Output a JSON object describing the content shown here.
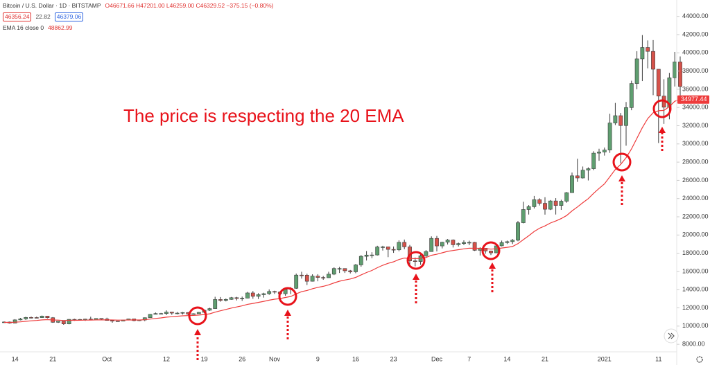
{
  "chart_data": {
    "type": "candlestick",
    "symbol": "Bitcoin / U.S. Dollar · 1D · BITSTAMP",
    "ohlc_text": "O46671.66 H47201.00 L46259.00 C46329.52 −375.15 (−0.80%)",
    "bid": 46356.24,
    "spread": 22.82,
    "ask": 46379.06,
    "annotation": "The price is respecting the 20 EMA",
    "up_color": "#5f9e70",
    "down_color": "#d6524a",
    "categories": [
      null,
      null,
      "14",
      null,
      null,
      null,
      null,
      null,
      null,
      "21",
      null,
      null,
      null,
      null,
      null,
      null,
      null,
      null,
      null,
      "Oct",
      null,
      null,
      null,
      null,
      null,
      null,
      null,
      null,
      null,
      null,
      "12",
      null,
      null,
      null,
      null,
      null,
      null,
      "19",
      null,
      null,
      null,
      null,
      null,
      null,
      "26",
      null,
      null,
      null,
      null,
      null,
      "Nov",
      null,
      null,
      null,
      null,
      null,
      null,
      null,
      "9",
      null,
      null,
      null,
      null,
      null,
      null,
      "16",
      null,
      null,
      null,
      null,
      null,
      null,
      "23",
      null,
      null,
      null,
      null,
      null,
      null,
      null,
      "Dec",
      null,
      null,
      null,
      null,
      null,
      "7",
      null,
      null,
      null,
      null,
      null,
      null,
      "14",
      null,
      null,
      null,
      null,
      null,
      null,
      "21",
      null,
      null,
      null,
      null,
      null,
      null,
      null,
      null,
      null,
      null,
      "2021",
      null,
      null,
      null,
      null,
      null,
      null,
      null,
      null,
      null,
      "11",
      null,
      null,
      null,
      null
    ],
    "open": [
      10400,
      10450,
      10330,
      10680,
      10790,
      10950,
      10940,
      10930,
      11100,
      10920,
      10420,
      10540,
      10240,
      10740,
      10690,
      10730,
      10770,
      10690,
      10840,
      10780,
      10620,
      10570,
      10550,
      10670,
      10790,
      10600,
      10670,
      10920,
      11290,
      11380,
      11380,
      11540,
      11430,
      11430,
      11490,
      11320,
      11360,
      11510,
      11740,
      11920,
      12920,
      12820,
      12930,
      13120,
      13030,
      13070,
      13640,
      13270,
      13450,
      13560,
      13800,
      13740,
      13550,
      14030,
      14150,
      15600,
      15590,
      14920,
      15490,
      15340,
      15310,
      15700,
      16320,
      16320,
      16070,
      15960,
      16720,
      17660,
      17800,
      17810,
      18690,
      18700,
      18420,
      18370,
      19200,
      18700,
      17160,
      17090,
      17720,
      18180,
      19630,
      18800,
      19210,
      19450,
      18930,
      19060,
      19180,
      19190,
      18320,
      18550,
      18250,
      18040,
      18810,
      19170,
      19270,
      19430,
      21350,
      22800,
      23110,
      23880,
      23480,
      22830,
      23740,
      23240,
      23710,
      24650,
      26500,
      26260,
      27120,
      27280,
      28990,
      29110,
      29330,
      32300,
      33100,
      32020,
      33990,
      36630,
      39340,
      40590,
      40160,
      38200,
      35250,
      34030,
      37260,
      39000
    ],
    "high": [
      10520,
      10500,
      10760,
      10900,
      11030,
      11050,
      11040,
      11160,
      11110,
      10990,
      10570,
      10550,
      10770,
      10800,
      10800,
      10800,
      11030,
      10860,
      10850,
      10920,
      10630,
      10590,
      10680,
      10800,
      10800,
      10690,
      10950,
      11330,
      11490,
      11450,
      11730,
      11550,
      11550,
      11550,
      11540,
      11400,
      11550,
      11820,
      12010,
      13220,
      13190,
      13030,
      13200,
      13210,
      13240,
      13760,
      13850,
      13620,
      13660,
      14030,
      13880,
      13820,
      14070,
      14280,
      15770,
      15970,
      15750,
      15690,
      15700,
      15500,
      15970,
      16450,
      16500,
      16330,
      16160,
      16820,
      17800,
      18240,
      18110,
      18820,
      18820,
      18700,
      18740,
      19420,
      19500,
      18910,
      17530,
      17880,
      18350,
      19850,
      19900,
      19260,
      19560,
      19520,
      19170,
      19420,
      19380,
      19240,
      18650,
      18550,
      18280,
      18950,
      19390,
      19390,
      19560,
      21540,
      23650,
      23290,
      24290,
      24030,
      24150,
      23840,
      24050,
      23870,
      24720,
      26860,
      28370,
      27520,
      27430,
      29200,
      29470,
      29600,
      33310,
      34500,
      33400,
      34600,
      36940,
      40180,
      41950,
      41360,
      41400,
      38200,
      37100,
      37800,
      40100,
      39600
    ],
    "low": [
      10350,
      10270,
      10300,
      10630,
      10670,
      10840,
      10880,
      10900,
      10850,
      10360,
      10350,
      10140,
      10190,
      10580,
      10650,
      10580,
      10680,
      10640,
      10670,
      10590,
      10370,
      10500,
      10520,
      10630,
      10530,
      10550,
      10540,
      10910,
      11290,
      11320,
      11200,
      11240,
      11290,
      11270,
      11220,
      11300,
      11350,
      11410,
      11670,
      11900,
      12680,
      12710,
      12890,
      12820,
      12770,
      13060,
      13000,
      12970,
      13130,
      13430,
      13530,
      13300,
      13330,
      13520,
      14090,
      15210,
      14510,
      14890,
      14920,
      15080,
      15300,
      15600,
      15830,
      15830,
      15780,
      15800,
      16520,
      17200,
      17450,
      17750,
      18290,
      17570,
      18040,
      18210,
      18440,
      16510,
      16560,
      16730,
      17510,
      18160,
      18200,
      18530,
      18960,
      18630,
      18740,
      18890,
      18880,
      18250,
      17750,
      17950,
      17800,
      18010,
      18750,
      19010,
      19010,
      19310,
      21280,
      22250,
      22910,
      23240,
      22240,
      22740,
      22250,
      22760,
      23540,
      24630,
      25830,
      26200,
      25990,
      27120,
      28150,
      28720,
      29020,
      32070,
      27890,
      29800,
      33700,
      36000,
      36900,
      38300,
      35350,
      30100,
      32200,
      32700,
      36300,
      34400
    ],
    "close": [
      10450,
      10330,
      10680,
      10790,
      10950,
      10940,
      10930,
      11100,
      10920,
      10420,
      10540,
      10240,
      10740,
      10690,
      10730,
      10770,
      10690,
      10840,
      10780,
      10620,
      10570,
      10550,
      10670,
      10790,
      10600,
      10670,
      10920,
      11290,
      11380,
      11380,
      11540,
      11430,
      11430,
      11490,
      11320,
      11360,
      11510,
      11740,
      11920,
      12920,
      12820,
      12930,
      13120,
      13030,
      13070,
      13640,
      13270,
      13450,
      13560,
      13800,
      13740,
      13550,
      14030,
      14150,
      15600,
      15590,
      14920,
      15490,
      15340,
      15310,
      15700,
      16320,
      16320,
      16070,
      15960,
      16720,
      17660,
      17800,
      17810,
      18690,
      18700,
      18420,
      18370,
      19200,
      18700,
      17160,
      17090,
      17720,
      18180,
      19630,
      18800,
      19210,
      19450,
      18930,
      19060,
      19180,
      19190,
      18320,
      18550,
      18250,
      18040,
      18810,
      19170,
      19270,
      19430,
      21350,
      22800,
      23110,
      23880,
      23480,
      22830,
      23740,
      23240,
      23710,
      24650,
      26500,
      26260,
      27120,
      27280,
      28990,
      29110,
      29330,
      32300,
      33100,
      32020,
      33990,
      36630,
      39340,
      40590,
      40160,
      38200,
      35250,
      34030,
      37260,
      39000,
      36300
    ],
    "overlay": {
      "name": "EMA 16 close 0",
      "value": 48862.99,
      "price_tag": 34977.44,
      "color": "#ee3b3b",
      "values": [
        10410,
        10400,
        10430,
        10470,
        10530,
        10580,
        10620,
        10680,
        10710,
        10670,
        10660,
        10610,
        10630,
        10630,
        10640,
        10660,
        10660,
        10680,
        10690,
        10680,
        10670,
        10660,
        10660,
        10670,
        10670,
        10670,
        10700,
        10770,
        10840,
        10900,
        10980,
        11030,
        11080,
        11130,
        11150,
        11170,
        11210,
        11270,
        11350,
        11530,
        11680,
        11830,
        11980,
        12100,
        12220,
        12390,
        12490,
        12600,
        12720,
        12850,
        12950,
        13020,
        13140,
        13260,
        13540,
        13780,
        13910,
        14100,
        14250,
        14370,
        14530,
        14740,
        14930,
        15060,
        15170,
        15350,
        15620,
        15880,
        16110,
        16410,
        16680,
        16890,
        17060,
        17310,
        17470,
        17440,
        17400,
        17440,
        17530,
        17770,
        17890,
        18050,
        18210,
        18300,
        18390,
        18480,
        18560,
        18540,
        18540,
        18500,
        18450,
        18490,
        18570,
        18650,
        18740,
        19050,
        19490,
        19920,
        20380,
        20750,
        21000,
        21320,
        21540,
        21800,
        22140,
        22650,
        23080,
        23550,
        23990,
        24580,
        25110,
        25610,
        26400,
        27190,
        27760,
        28490,
        29450,
        30620,
        31790,
        32780,
        33420,
        33640,
        33680,
        34100,
        34680,
        34870
      ]
    },
    "ylim": [
      7250,
      45800
    ],
    "yticks": [
      {
        "value": 8000,
        "label": "8000.00"
      },
      {
        "value": 10000,
        "label": "10000.00"
      },
      {
        "value": 12000,
        "label": "12000.00"
      },
      {
        "value": 14000,
        "label": "14000.00"
      },
      {
        "value": 16000,
        "label": "16000.00"
      },
      {
        "value": 18000,
        "label": "18000.00"
      },
      {
        "value": 20000,
        "label": "20000.00"
      },
      {
        "value": 22000,
        "label": "22000.00"
      },
      {
        "value": 24000,
        "label": "24000.00"
      },
      {
        "value": 26000,
        "label": "26000.00"
      },
      {
        "value": 28000,
        "label": "28000.00"
      },
      {
        "value": 30000,
        "label": "30000.00"
      },
      {
        "value": 32000,
        "label": "32000.00"
      },
      {
        "value": 34000,
        "label": "34000.00"
      },
      {
        "value": 36000,
        "label": "36000.00"
      },
      {
        "value": 38000,
        "label": "38000.00"
      },
      {
        "value": 40000,
        "label": "40000.00"
      },
      {
        "value": 42000,
        "label": "42000.00"
      },
      {
        "value": 44000,
        "label": "44000.00"
      }
    ],
    "grid": false
  }
}
